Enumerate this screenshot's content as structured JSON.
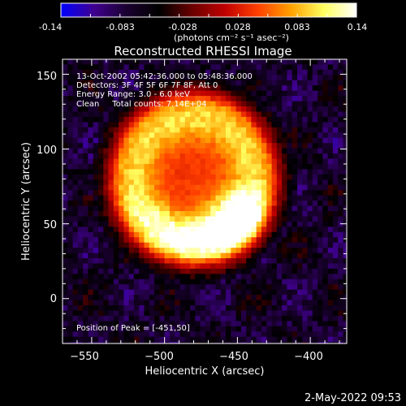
{
  "colorbar": {
    "tick_labels": [
      "-0.14",
      "-0.083",
      "-0.028",
      "0.028",
      "0.083",
      "0.14"
    ],
    "range": [
      -0.14,
      0.14
    ],
    "units_label": "(photons cm⁻² s⁻¹ asec⁻²)",
    "colors": [
      "#0000ff",
      "#400090",
      "#1a0030",
      "#000000",
      "#6a0000",
      "#c00000",
      "#ff4000",
      "#ffa000",
      "#ffff60",
      "#ffffff"
    ]
  },
  "chart_data": {
    "type": "heatmap",
    "title": "Reconstructed RHESSI Image",
    "xlabel": "Heliocentric X (arcsec)",
    "ylabel": "Heliocentric Y (arcsec)",
    "xlim": [
      -570,
      -375
    ],
    "ylim": [
      -30,
      160
    ],
    "x_ticks": [
      -550,
      -500,
      -450,
      -400
    ],
    "y_ticks": [
      0,
      50,
      100,
      150
    ],
    "x_tick_labels": [
      "−550",
      "−500",
      "−450",
      "−400"
    ],
    "y_tick_labels": [
      "0",
      "50",
      "100",
      "150"
    ],
    "annotations": [
      "13-Oct-2002 05:42:36.000 to 05:48:36.000",
      "Detectors: 3F 4F 5F 6F 7F 8F, Att 0",
      "Energy Range: 3.0 - 6.0 keV",
      "Clean     Total counts: 7.14E+04"
    ],
    "peak_label": "Position of Peak = [-451,50]",
    "peak": [
      -451,
      50
    ],
    "background_value": -0.07,
    "grid": false
  },
  "footer": {
    "date": "2-May-2022 09:53"
  }
}
